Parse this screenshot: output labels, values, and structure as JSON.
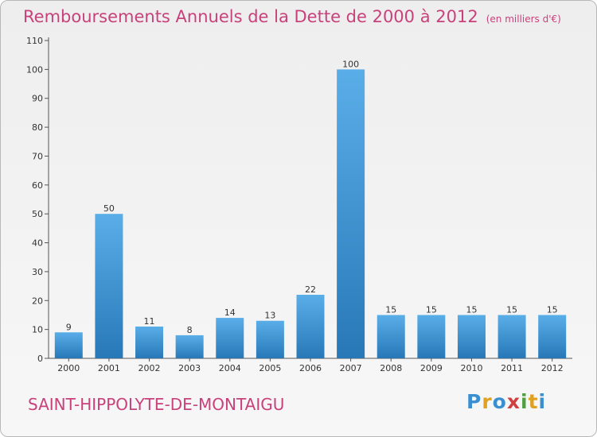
{
  "chart_data": {
    "type": "bar",
    "title": "Remboursements Annuels de la Dette de 2000 à 2012",
    "unit": "(en milliers d'€)",
    "categories": [
      "2000",
      "2001",
      "2002",
      "2003",
      "2004",
      "2005",
      "2006",
      "2007",
      "2008",
      "2009",
      "2010",
      "2011",
      "2012"
    ],
    "values": [
      9,
      50,
      11,
      8,
      14,
      13,
      22,
      100,
      15,
      15,
      15,
      15,
      15
    ],
    "ylim": [
      0,
      110
    ],
    "yticks": [
      0,
      10,
      20,
      30,
      40,
      50,
      60,
      70,
      80,
      90,
      100,
      110
    ],
    "grid": false,
    "colors": {
      "bar_top": "#5aaee8",
      "bar_bottom": "#2878b8",
      "title": "#c8417b"
    }
  },
  "footer": {
    "town": "SAINT-HIPPOLYTE-DE-MONTAIGU"
  },
  "logo": {
    "letters": [
      {
        "ch": "P",
        "color": "#3a8fd0"
      },
      {
        "ch": "r",
        "color": "#e0a020"
      },
      {
        "ch": "o",
        "color": "#3a8fd0"
      },
      {
        "ch": "x",
        "color": "#d04040"
      },
      {
        "ch": "i",
        "color": "#50a040"
      },
      {
        "ch": "t",
        "color": "#e0a020"
      },
      {
        "ch": "i",
        "color": "#3a8fd0"
      }
    ]
  }
}
